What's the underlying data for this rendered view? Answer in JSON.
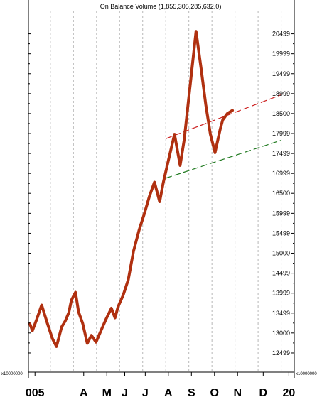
{
  "chart_data": {
    "type": "line",
    "title": "On Balance Volume (1,855,305,285,632.0)",
    "axis_multiplier_label": "x10000000",
    "y_ticks": [
      "12499",
      "13000",
      "13499",
      "13999",
      "14499",
      "15000",
      "15499",
      "15999",
      "16500",
      "16999",
      "17499",
      "17999",
      "18500",
      "18999",
      "19499",
      "19999",
      "20499"
    ],
    "y_tick_values": [
      12499,
      13000,
      13499,
      13999,
      14499,
      15000,
      15499,
      15999,
      16500,
      16999,
      17499,
      17999,
      18500,
      18999,
      19499,
      19999,
      20499
    ],
    "ylim": [
      12000,
      20990
    ],
    "xlim": [
      0,
      51
    ],
    "x_tick_labels": [
      {
        "label": "005",
        "x": 1
      },
      {
        "label": "A",
        "x": 10.5
      },
      {
        "label": "M",
        "x": 15
      },
      {
        "label": "J",
        "x": 18.5
      },
      {
        "label": "J",
        "x": 22.5
      },
      {
        "label": "A",
        "x": 27
      },
      {
        "label": "S",
        "x": 31.5
      },
      {
        "label": "O",
        "x": 36
      },
      {
        "label": "N",
        "x": 40.5
      },
      {
        "label": "D",
        "x": 45.5
      },
      {
        "label": "20",
        "x": 50.5
      }
    ],
    "x_gridlines": [
      4,
      8.5,
      13,
      17.5,
      22,
      26.5,
      31,
      35.5,
      40,
      44.5,
      49
    ],
    "grid": true,
    "series": [
      {
        "color": "#b03010",
        "x": [
          0,
          0.5,
          1.3,
          2.3,
          3.4,
          4.4,
          5.2,
          6.2,
          6.9,
          7.6,
          8.1,
          8.9,
          9.5,
          10.3,
          11.2,
          12.0,
          12.9,
          13.8,
          14.9,
          15.9,
          16.6,
          17.2,
          18.2,
          19.2,
          20.2,
          21.3,
          22.3,
          23.3,
          24.3,
          25.3,
          26.0,
          27.0,
          28.2,
          29.3,
          30.1,
          31.2,
          32.4,
          33.4,
          34.3,
          35.2,
          36.1,
          37.1,
          37.6,
          38.5,
          39.5
        ],
        "values": [
          13230,
          13060,
          13330,
          13700,
          13250,
          12860,
          12660,
          13150,
          13300,
          13510,
          13820,
          14020,
          13530,
          13240,
          12740,
          12940,
          12770,
          13040,
          13360,
          13620,
          13380,
          13660,
          13950,
          14340,
          15050,
          15580,
          15980,
          16420,
          16780,
          16290,
          16760,
          17320,
          17980,
          17200,
          17850,
          19140,
          20560,
          19620,
          18720,
          17980,
          17520,
          18100,
          18340,
          18500,
          18580
        ]
      }
    ],
    "trendlines": [
      {
        "color": "#cc2020",
        "dash": true,
        "x": [
          26.5,
          49
        ],
        "values": [
          17870,
          18970
        ]
      },
      {
        "color": "#207a20",
        "dash": true,
        "x": [
          26.5,
          49
        ],
        "values": [
          16880,
          17830
        ]
      }
    ]
  }
}
